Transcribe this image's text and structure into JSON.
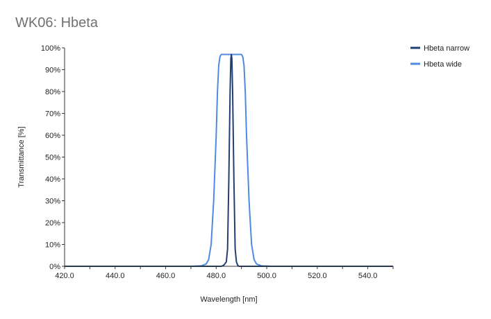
{
  "chart_data": {
    "type": "line",
    "title": "WK06: Hbeta",
    "xlabel": "Wavelength [nm]",
    "ylabel": "Transmittance [%]",
    "xlim": [
      420,
      550
    ],
    "ylim": [
      0,
      100
    ],
    "x_ticks": [
      420,
      440,
      460,
      480,
      500,
      520,
      540
    ],
    "x_tick_labels": [
      "420.0",
      "440.0",
      "460.0",
      "480.0",
      "500.0",
      "520.0",
      "540.0"
    ],
    "y_ticks": [
      0,
      10,
      20,
      30,
      40,
      50,
      60,
      70,
      80,
      90,
      100
    ],
    "y_tick_labels": [
      "0%",
      "10%",
      "20%",
      "30%",
      "40%",
      "50%",
      "60%",
      "70%",
      "80%",
      "90%",
      "100%"
    ],
    "legend_position": "top-right",
    "grid": false,
    "series": [
      {
        "name": "Hbeta narrow",
        "color": "#1f3f73",
        "x": [
          420,
          480,
          482,
          483,
          484,
          484.5,
          485,
          485.5,
          485.8,
          486,
          486.2,
          486.5,
          487,
          487.5,
          488,
          488.5,
          489,
          490,
          492,
          550
        ],
        "y": [
          0,
          0,
          0,
          0.5,
          2,
          8,
          40,
          80,
          95,
          97,
          95,
          80,
          40,
          8,
          2,
          0.5,
          0,
          0,
          0,
          0
        ]
      },
      {
        "name": "Hbeta wide",
        "color": "#4d8ae0",
        "x": [
          420,
          470,
          474,
          476,
          477,
          478,
          479,
          480,
          480.5,
          481,
          481.5,
          482,
          483,
          487,
          490,
          490.5,
          491,
          491.5,
          492,
          493,
          494,
          495,
          496,
          498,
          502,
          550
        ],
        "y": [
          0,
          0,
          0.2,
          1,
          3,
          10,
          30,
          60,
          80,
          92,
          96,
          97,
          97,
          97,
          97,
          96,
          92,
          80,
          60,
          30,
          10,
          3,
          1,
          0.2,
          0,
          0
        ]
      }
    ]
  }
}
